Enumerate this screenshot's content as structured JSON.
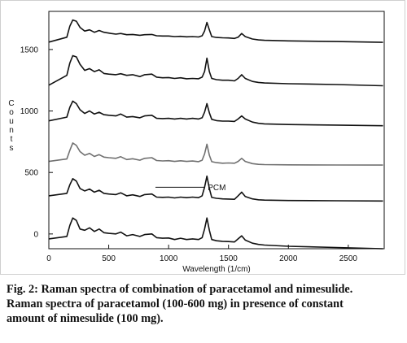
{
  "chart_data": {
    "type": "line",
    "xlabel": "Wavelength (1/cm)",
    "ylabel": "Counts",
    "xlim": [
      0,
      2800
    ],
    "ylim": [
      -120,
      1810
    ],
    "x_ticks": [
      0,
      500,
      1000,
      1500,
      2000,
      2500
    ],
    "y_ticks": [
      0,
      500,
      1000,
      1500
    ],
    "grid": false,
    "annotation": {
      "text": "PCM",
      "x_start": 890,
      "x_end": 1490,
      "y": 380
    },
    "series": [
      {
        "baseline": 1560,
        "end_value": 1560,
        "points": [
          [
            0,
            1560
          ],
          [
            150,
            1600
          ],
          [
            175,
            1690
          ],
          [
            200,
            1740
          ],
          [
            230,
            1730
          ],
          [
            260,
            1680
          ],
          [
            300,
            1650
          ],
          [
            340,
            1660
          ],
          [
            380,
            1640
          ],
          [
            420,
            1655
          ],
          [
            460,
            1640
          ],
          [
            520,
            1630
          ],
          [
            560,
            1625
          ],
          [
            600,
            1630
          ],
          [
            650,
            1620
          ],
          [
            700,
            1622
          ],
          [
            760,
            1616
          ],
          [
            800,
            1620
          ],
          [
            860,
            1622
          ],
          [
            900,
            1612
          ],
          [
            950,
            1610
          ],
          [
            1000,
            1610
          ],
          [
            1050,
            1605
          ],
          [
            1100,
            1607
          ],
          [
            1150,
            1603
          ],
          [
            1200,
            1605
          ],
          [
            1250,
            1602
          ],
          [
            1280,
            1612
          ],
          [
            1300,
            1650
          ],
          [
            1320,
            1720
          ],
          [
            1340,
            1660
          ],
          [
            1360,
            1605
          ],
          [
            1400,
            1598
          ],
          [
            1450,
            1595
          ],
          [
            1500,
            1594
          ],
          [
            1550,
            1590
          ],
          [
            1580,
            1600
          ],
          [
            1610,
            1630
          ],
          [
            1640,
            1605
          ],
          [
            1700,
            1585
          ],
          [
            1750,
            1578
          ],
          [
            1800,
            1575
          ],
          [
            2000,
            1570
          ],
          [
            2400,
            1565
          ],
          [
            2790,
            1558
          ]
        ]
      },
      {
        "baseline": 1210,
        "end_value": 1210,
        "points": [
          [
            0,
            1210
          ],
          [
            150,
            1290
          ],
          [
            175,
            1390
          ],
          [
            200,
            1450
          ],
          [
            230,
            1440
          ],
          [
            260,
            1380
          ],
          [
            300,
            1330
          ],
          [
            340,
            1345
          ],
          [
            380,
            1320
          ],
          [
            420,
            1335
          ],
          [
            460,
            1305
          ],
          [
            500,
            1300
          ],
          [
            560,
            1295
          ],
          [
            600,
            1303
          ],
          [
            650,
            1290
          ],
          [
            700,
            1295
          ],
          [
            760,
            1280
          ],
          [
            800,
            1295
          ],
          [
            860,
            1300
          ],
          [
            900,
            1275
          ],
          [
            950,
            1270
          ],
          [
            1000,
            1272
          ],
          [
            1050,
            1265
          ],
          [
            1100,
            1270
          ],
          [
            1150,
            1262
          ],
          [
            1200,
            1265
          ],
          [
            1250,
            1262
          ],
          [
            1280,
            1275
          ],
          [
            1300,
            1320
          ],
          [
            1320,
            1430
          ],
          [
            1340,
            1320
          ],
          [
            1360,
            1265
          ],
          [
            1400,
            1255
          ],
          [
            1450,
            1250
          ],
          [
            1500,
            1250
          ],
          [
            1550,
            1245
          ],
          [
            1580,
            1265
          ],
          [
            1610,
            1295
          ],
          [
            1640,
            1265
          ],
          [
            1700,
            1240
          ],
          [
            1750,
            1232
          ],
          [
            1800,
            1228
          ],
          [
            2000,
            1222
          ],
          [
            2400,
            1215
          ],
          [
            2790,
            1205
          ]
        ]
      },
      {
        "baseline": 920,
        "end_value": 880,
        "points": [
          [
            0,
            920
          ],
          [
            150,
            950
          ],
          [
            175,
            1030
          ],
          [
            200,
            1080
          ],
          [
            230,
            1060
          ],
          [
            260,
            1010
          ],
          [
            300,
            980
          ],
          [
            340,
            1000
          ],
          [
            380,
            975
          ],
          [
            420,
            990
          ],
          [
            460,
            970
          ],
          [
            500,
            965
          ],
          [
            560,
            960
          ],
          [
            600,
            975
          ],
          [
            650,
            950
          ],
          [
            700,
            955
          ],
          [
            760,
            945
          ],
          [
            800,
            960
          ],
          [
            860,
            965
          ],
          [
            900,
            940
          ],
          [
            950,
            938
          ],
          [
            1000,
            940
          ],
          [
            1050,
            935
          ],
          [
            1100,
            940
          ],
          [
            1150,
            935
          ],
          [
            1200,
            940
          ],
          [
            1250,
            935
          ],
          [
            1280,
            945
          ],
          [
            1300,
            990
          ],
          [
            1320,
            1060
          ],
          [
            1340,
            985
          ],
          [
            1360,
            932
          ],
          [
            1400,
            922
          ],
          [
            1450,
            918
          ],
          [
            1500,
            918
          ],
          [
            1550,
            915
          ],
          [
            1580,
            935
          ],
          [
            1610,
            960
          ],
          [
            1640,
            935
          ],
          [
            1700,
            910
          ],
          [
            1750,
            900
          ],
          [
            1800,
            895
          ],
          [
            2000,
            890
          ],
          [
            2400,
            885
          ],
          [
            2790,
            880
          ]
        ]
      },
      {
        "baseline": 590,
        "end_value": 560,
        "color": "#707070",
        "points": [
          [
            0,
            590
          ],
          [
            150,
            610
          ],
          [
            175,
            680
          ],
          [
            200,
            740
          ],
          [
            230,
            720
          ],
          [
            260,
            670
          ],
          [
            300,
            640
          ],
          [
            340,
            655
          ],
          [
            380,
            630
          ],
          [
            420,
            645
          ],
          [
            460,
            625
          ],
          [
            500,
            620
          ],
          [
            560,
            615
          ],
          [
            600,
            628
          ],
          [
            650,
            605
          ],
          [
            700,
            612
          ],
          [
            760,
            600
          ],
          [
            800,
            615
          ],
          [
            860,
            620
          ],
          [
            900,
            597
          ],
          [
            950,
            594
          ],
          [
            1000,
            596
          ],
          [
            1050,
            590
          ],
          [
            1100,
            595
          ],
          [
            1150,
            590
          ],
          [
            1200,
            593
          ],
          [
            1250,
            588
          ],
          [
            1280,
            600
          ],
          [
            1300,
            650
          ],
          [
            1320,
            730
          ],
          [
            1340,
            640
          ],
          [
            1360,
            588
          ],
          [
            1400,
            580
          ],
          [
            1450,
            575
          ],
          [
            1500,
            577
          ],
          [
            1550,
            575
          ],
          [
            1580,
            590
          ],
          [
            1610,
            615
          ],
          [
            1640,
            590
          ],
          [
            1700,
            572
          ],
          [
            1750,
            566
          ],
          [
            1800,
            564
          ],
          [
            2000,
            562
          ],
          [
            2400,
            561
          ],
          [
            2790,
            560
          ]
        ]
      },
      {
        "baseline": 310,
        "end_value": 270,
        "points": [
          [
            0,
            310
          ],
          [
            150,
            330
          ],
          [
            175,
            400
          ],
          [
            200,
            450
          ],
          [
            230,
            430
          ],
          [
            260,
            370
          ],
          [
            300,
            350
          ],
          [
            340,
            365
          ],
          [
            380,
            340
          ],
          [
            420,
            355
          ],
          [
            460,
            330
          ],
          [
            500,
            325
          ],
          [
            560,
            320
          ],
          [
            600,
            335
          ],
          [
            650,
            310
          ],
          [
            700,
            318
          ],
          [
            760,
            305
          ],
          [
            800,
            320
          ],
          [
            860,
            325
          ],
          [
            900,
            300
          ],
          [
            950,
            298
          ],
          [
            1000,
            300
          ],
          [
            1050,
            293
          ],
          [
            1100,
            300
          ],
          [
            1150,
            295
          ],
          [
            1200,
            300
          ],
          [
            1250,
            295
          ],
          [
            1280,
            310
          ],
          [
            1300,
            380
          ],
          [
            1320,
            470
          ],
          [
            1340,
            370
          ],
          [
            1360,
            297
          ],
          [
            1400,
            290
          ],
          [
            1450,
            285
          ],
          [
            1500,
            284
          ],
          [
            1550,
            282
          ],
          [
            1580,
            310
          ],
          [
            1610,
            340
          ],
          [
            1640,
            305
          ],
          [
            1700,
            285
          ],
          [
            1750,
            278
          ],
          [
            1800,
            275
          ],
          [
            2000,
            272
          ],
          [
            2400,
            270
          ],
          [
            2790,
            268
          ]
        ]
      },
      {
        "baseline": -40,
        "end_value": -120,
        "points": [
          [
            0,
            -40
          ],
          [
            150,
            -20
          ],
          [
            175,
            70
          ],
          [
            200,
            130
          ],
          [
            230,
            110
          ],
          [
            260,
            40
          ],
          [
            300,
            30
          ],
          [
            340,
            50
          ],
          [
            380,
            20
          ],
          [
            420,
            40
          ],
          [
            460,
            10
          ],
          [
            500,
            5
          ],
          [
            560,
            0
          ],
          [
            600,
            15
          ],
          [
            650,
            -15
          ],
          [
            700,
            -5
          ],
          [
            760,
            -20
          ],
          [
            800,
            -5
          ],
          [
            860,
            0
          ],
          [
            900,
            -30
          ],
          [
            950,
            -35
          ],
          [
            1000,
            -33
          ],
          [
            1050,
            -45
          ],
          [
            1100,
            -35
          ],
          [
            1150,
            -45
          ],
          [
            1200,
            -40
          ],
          [
            1250,
            -45
          ],
          [
            1280,
            -30
          ],
          [
            1300,
            40
          ],
          [
            1320,
            130
          ],
          [
            1340,
            30
          ],
          [
            1360,
            -45
          ],
          [
            1400,
            -55
          ],
          [
            1450,
            -60
          ],
          [
            1500,
            -62
          ],
          [
            1550,
            -65
          ],
          [
            1580,
            -40
          ],
          [
            1610,
            -15
          ],
          [
            1640,
            -50
          ],
          [
            1700,
            -75
          ],
          [
            1750,
            -85
          ],
          [
            1800,
            -90
          ],
          [
            2000,
            -100
          ],
          [
            2400,
            -110
          ],
          [
            2790,
            -120
          ]
        ]
      }
    ]
  },
  "caption": {
    "line1": "Fig. 2: Raman spectra of combination of paracetamol and nimesulide.",
    "line2": "Raman spectra of paracetamol (100-600 mg) in presence of constant",
    "line3": "amount of nimesulide (100 mg)."
  }
}
